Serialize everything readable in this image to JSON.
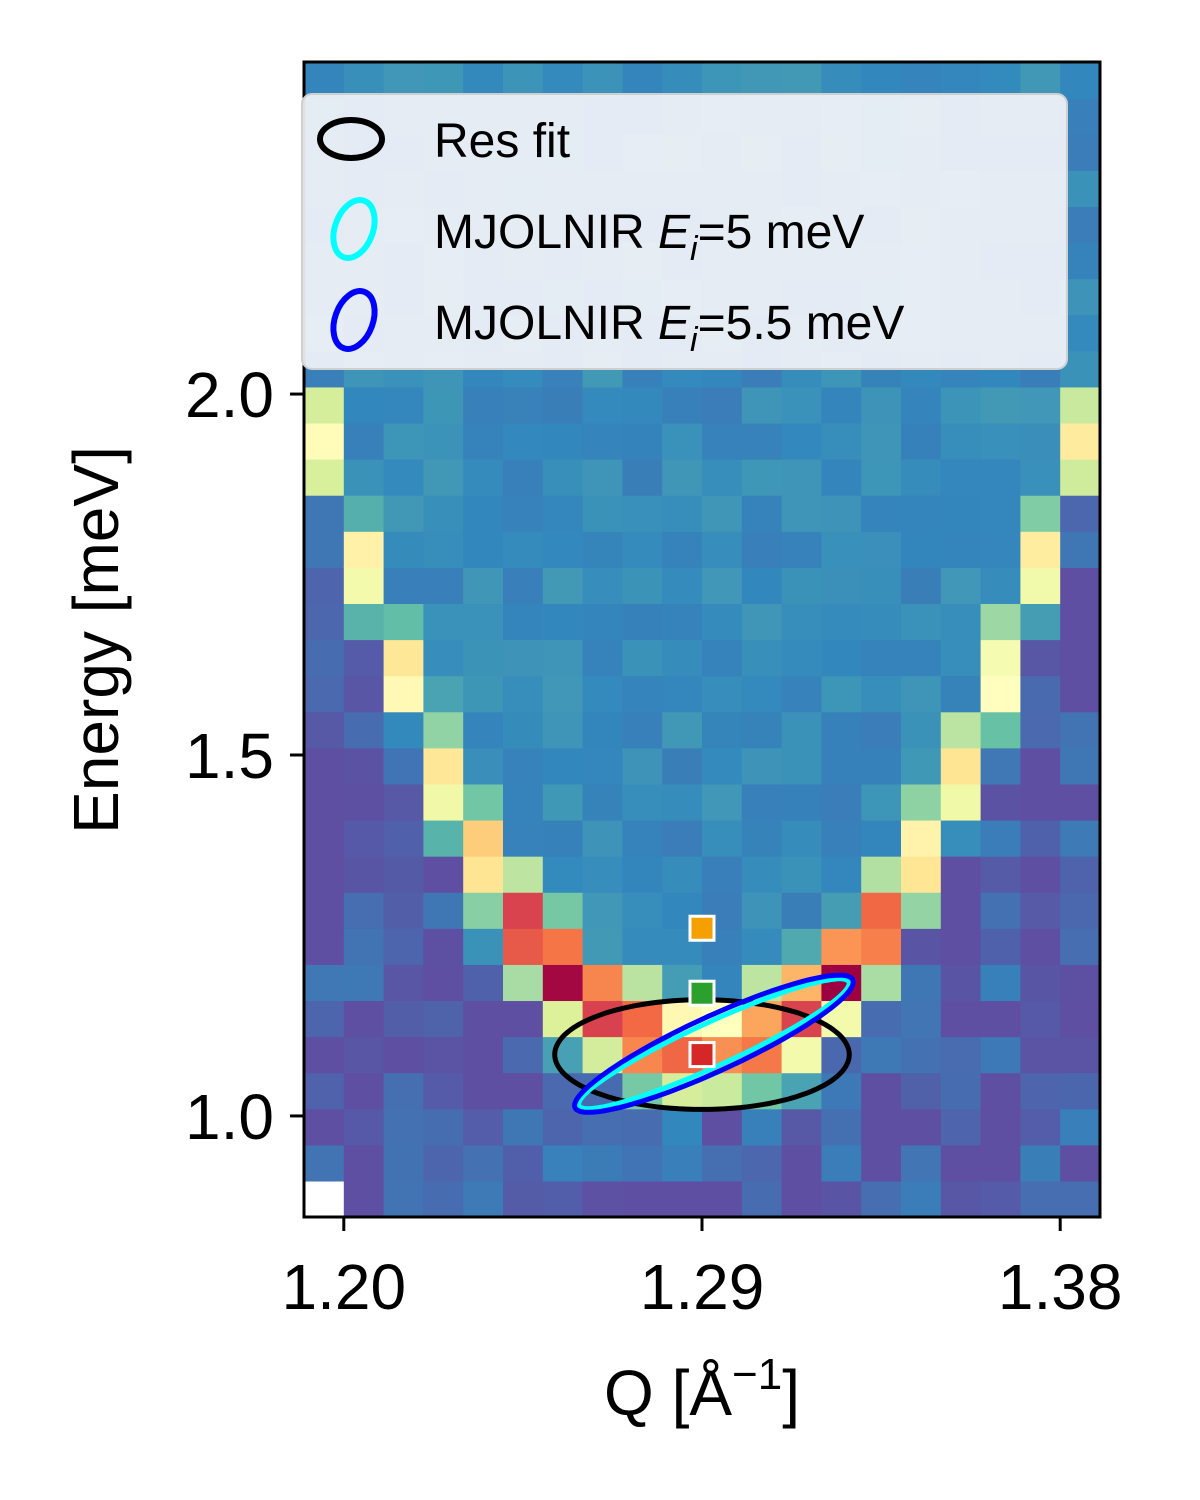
{
  "chart_data": {
    "type": "heatmap",
    "title": "",
    "xlabel": "Q [Å",
    "xlabel_sup": "−1",
    "xlabel_close": "]",
    "ylabel": "Energy [meV]",
    "xlim": [
      1.19,
      1.39
    ],
    "ylim": [
      0.86,
      2.46
    ],
    "x_ticks": [
      1.2,
      1.29,
      1.38
    ],
    "x_tick_labels": [
      "1.20",
      "1.29",
      "1.38"
    ],
    "y_ticks": [
      1.0,
      1.5,
      2.0
    ],
    "y_tick_labels": [
      "1.0",
      "1.5",
      "2.0"
    ],
    "colormap": "Spectral_r",
    "grid": {
      "cols": 20,
      "rows": 32,
      "q_start": 1.19,
      "q_step": 0.01,
      "e_start": 0.86,
      "e_step": 0.05,
      "mask_pixels": [
        [
          0,
          0
        ]
      ]
    },
    "dispersion": {
      "q_min": 1.29,
      "e_min": 1.08,
      "curvature": 95,
      "width": 0.07,
      "bottom_sharpness": 9
    },
    "markers": [
      {
        "q": 1.29,
        "E": 1.26,
        "color": "#f5a000"
      },
      {
        "q": 1.29,
        "E": 1.17,
        "color": "#2ca02c"
      },
      {
        "q": 1.29,
        "E": 1.085,
        "color": "#d62728"
      }
    ],
    "ellipses": [
      {
        "label": "Res fit",
        "color": "#000000",
        "center_q": 1.29,
        "center_E": 1.085,
        "semi_q": 0.037,
        "semi_E": 0.076,
        "correlation": 0.0
      },
      {
        "label": "MJOLNIR E_i=5 meV",
        "color": "#00ffff",
        "center_q": 1.293,
        "center_E": 1.1,
        "semi_q": 0.034,
        "semi_E": 0.09,
        "correlation": 0.93
      },
      {
        "label": "MJOLNIR E_i=5.5 meV",
        "color": "#0000ff",
        "center_q": 1.293,
        "center_E": 1.1,
        "semi_q": 0.035,
        "semi_E": 0.095,
        "correlation": 0.9
      }
    ],
    "legend": {
      "placement": "top",
      "entries": [
        {
          "text": "Res fit",
          "color": "#000000"
        },
        {
          "text_pre": "MJOLNIR ",
          "sym": "E",
          "sub": "i",
          "text_post": "=5 meV",
          "color": "#00ffff"
        },
        {
          "text_pre": "MJOLNIR ",
          "sym": "E",
          "sub": "i",
          "text_post": "=5.5 meV",
          "color": "#0000ff"
        }
      ]
    }
  }
}
